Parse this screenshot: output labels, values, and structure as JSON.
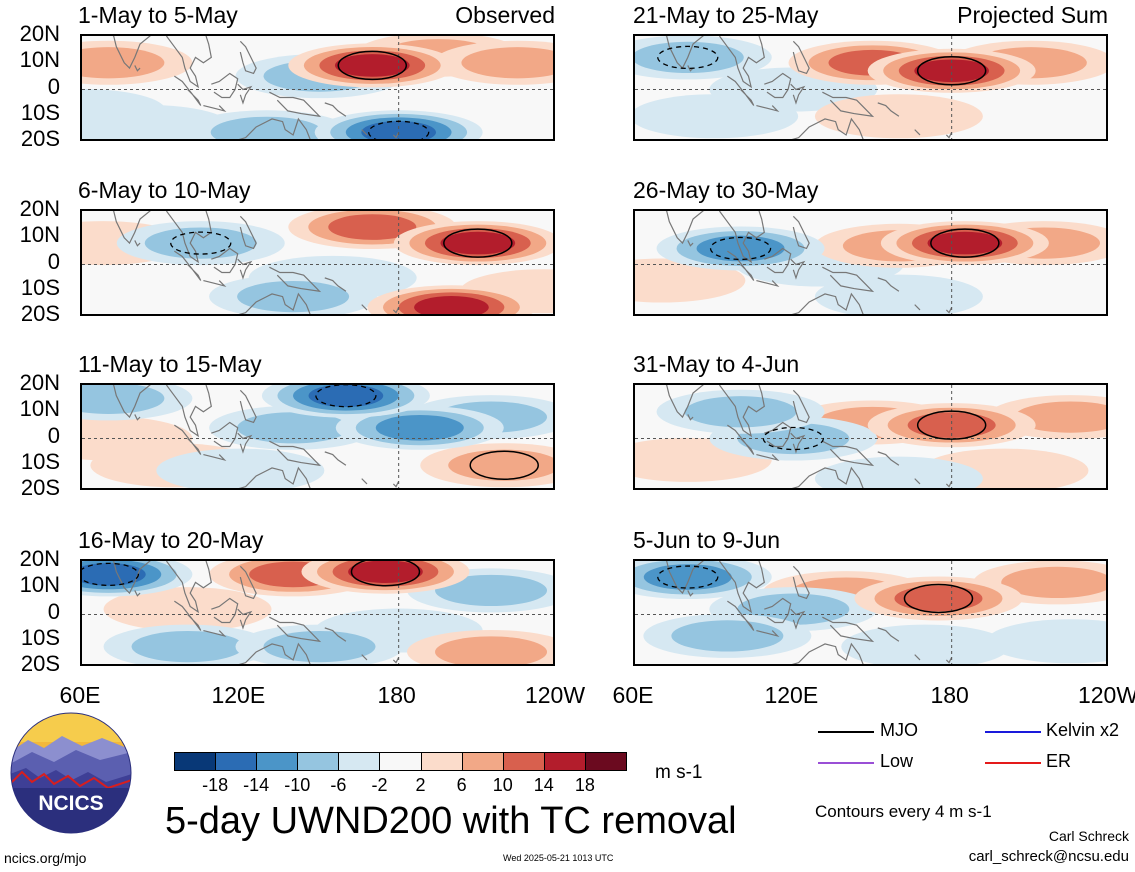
{
  "figure": {
    "main_title": "5-day UWND200 with TC removal",
    "site": "ncics.org/mjo",
    "timestamp": "Wed 2025-05-21 1013 UTC",
    "author": "Carl Schreck",
    "email": "carl_schreck@ncsu.edu",
    "logo_text": "NCICS"
  },
  "colorbar": {
    "unit": "m s-1",
    "ticks": [
      "-18",
      "-14",
      "-10",
      "-6",
      "-2",
      "2",
      "6",
      "10",
      "14",
      "18"
    ],
    "colors": [
      "#083877",
      "#2b6cb4",
      "#4b95c8",
      "#95c5e0",
      "#d6e8f2",
      "#f8f8f8",
      "#fbdccb",
      "#f2a887",
      "#d8604e",
      "#b31d2c",
      "#6b0a1f"
    ]
  },
  "legend": {
    "items": [
      {
        "label": "MJO",
        "color": "#000000"
      },
      {
        "label": "Kelvin x2",
        "color": "#1a1adb"
      },
      {
        "label": "Low",
        "color": "#9a4fd6"
      },
      {
        "label": "ER",
        "color": "#e41a1a"
      }
    ],
    "contour_note": "Contours every 4 m s-1"
  },
  "axes": {
    "y_ticks": [
      "20N",
      "10N",
      "0",
      "10S",
      "20S"
    ],
    "x_ticks": [
      "60E",
      "120E",
      "180",
      "120W"
    ]
  },
  "chart_data": {
    "type": "heatmap",
    "variable": "200-hPa zonal wind anomaly",
    "units": "m s-1",
    "x_range_lon": [
      60,
      240
    ],
    "y_range_lat": [
      -20,
      20
    ],
    "contour_interval": 4,
    "color_levels": [
      -18,
      -14,
      -10,
      -6,
      -2,
      2,
      6,
      10,
      14,
      18
    ],
    "panels": [
      {
        "title": "1-May to 5-May",
        "tag": "Observed",
        "features": [
          {
            "lon": 170,
            "lat": 9,
            "value": 14
          },
          {
            "lon": 70,
            "lat": 10,
            "value": 6
          },
          {
            "lon": 195,
            "lat": 13,
            "value": 6
          },
          {
            "lon": 225,
            "lat": 10,
            "value": 6
          },
          {
            "lon": 180,
            "lat": -16,
            "value": -14
          },
          {
            "lon": 150,
            "lat": 5,
            "value": -6
          },
          {
            "lon": 130,
            "lat": -16,
            "value": -6
          },
          {
            "lon": 85,
            "lat": -14,
            "value": -2
          },
          {
            "lon": 60,
            "lat": -8,
            "value": -2
          }
        ]
      },
      {
        "title": "6-May to 10-May",
        "tag": "",
        "features": [
          {
            "lon": 210,
            "lat": 8,
            "value": 14
          },
          {
            "lon": 170,
            "lat": 14,
            "value": 10
          },
          {
            "lon": 200,
            "lat": -16,
            "value": 14
          },
          {
            "lon": 68,
            "lat": 8,
            "value": 2
          },
          {
            "lon": 105,
            "lat": 8,
            "value": -6
          },
          {
            "lon": 140,
            "lat": -12,
            "value": -6
          },
          {
            "lon": 155,
            "lat": -5,
            "value": -2
          },
          {
            "lon": 235,
            "lat": -10,
            "value": 2
          }
        ]
      },
      {
        "title": "11-May to 15-May",
        "tag": "",
        "features": [
          {
            "lon": 140,
            "lat": 4,
            "value": -6
          },
          {
            "lon": 160,
            "lat": 16,
            "value": -14
          },
          {
            "lon": 188,
            "lat": 4,
            "value": -10
          },
          {
            "lon": 215,
            "lat": 8,
            "value": -6
          },
          {
            "lon": 220,
            "lat": -10,
            "value": 6
          },
          {
            "lon": 70,
            "lat": 0,
            "value": 2
          },
          {
            "lon": 95,
            "lat": -10,
            "value": 2
          },
          {
            "lon": 120,
            "lat": -12,
            "value": -2
          },
          {
            "lon": 70,
            "lat": 15,
            "value": -6
          }
        ]
      },
      {
        "title": "16-May to 20-May",
        "tag": "",
        "features": [
          {
            "lon": 175,
            "lat": 16,
            "value": 16
          },
          {
            "lon": 140,
            "lat": 15,
            "value": 10
          },
          {
            "lon": 215,
            "lat": 9,
            "value": -6
          },
          {
            "lon": 70,
            "lat": 15,
            "value": -14
          },
          {
            "lon": 100,
            "lat": -12,
            "value": -6
          },
          {
            "lon": 150,
            "lat": -12,
            "value": -6
          },
          {
            "lon": 180,
            "lat": -6,
            "value": -2
          },
          {
            "lon": 215,
            "lat": -14,
            "value": 6
          },
          {
            "lon": 100,
            "lat": 2,
            "value": 2
          }
        ]
      },
      {
        "title": "21-May to 25-May",
        "tag": "Projected Sum",
        "features": [
          {
            "lon": 180,
            "lat": 7,
            "value": 14
          },
          {
            "lon": 150,
            "lat": 10,
            "value": 10
          },
          {
            "lon": 210,
            "lat": 10,
            "value": 6
          },
          {
            "lon": 80,
            "lat": 12,
            "value": -6
          },
          {
            "lon": 120,
            "lat": 0,
            "value": -2
          },
          {
            "lon": 90,
            "lat": -10,
            "value": -2
          },
          {
            "lon": 160,
            "lat": -10,
            "value": 2
          }
        ]
      },
      {
        "title": "26-May to 30-May",
        "tag": "",
        "features": [
          {
            "lon": 185,
            "lat": 8,
            "value": 14
          },
          {
            "lon": 160,
            "lat": 7,
            "value": 6
          },
          {
            "lon": 215,
            "lat": 8,
            "value": 6
          },
          {
            "lon": 100,
            "lat": 6,
            "value": -10
          },
          {
            "lon": 130,
            "lat": 0,
            "value": -2
          },
          {
            "lon": 160,
            "lat": -12,
            "value": -2
          },
          {
            "lon": 70,
            "lat": -6,
            "value": 2
          }
        ]
      },
      {
        "title": "31-May to 4-Jun",
        "tag": "",
        "features": [
          {
            "lon": 180,
            "lat": 5,
            "value": 10
          },
          {
            "lon": 150,
            "lat": 6,
            "value": 6
          },
          {
            "lon": 225,
            "lat": 8,
            "value": 6
          },
          {
            "lon": 120,
            "lat": 0,
            "value": -6
          },
          {
            "lon": 100,
            "lat": 10,
            "value": -6
          },
          {
            "lon": 200,
            "lat": -12,
            "value": 2
          },
          {
            "lon": 160,
            "lat": -15,
            "value": -2
          },
          {
            "lon": 80,
            "lat": -8,
            "value": 2
          }
        ]
      },
      {
        "title": "5-Jun to 9-Jun",
        "tag": "",
        "features": [
          {
            "lon": 175,
            "lat": 6,
            "value": 10
          },
          {
            "lon": 140,
            "lat": 8,
            "value": 6
          },
          {
            "lon": 220,
            "lat": 12,
            "value": 6
          },
          {
            "lon": 80,
            "lat": 14,
            "value": -10
          },
          {
            "lon": 120,
            "lat": 2,
            "value": -6
          },
          {
            "lon": 95,
            "lat": -8,
            "value": -6
          },
          {
            "lon": 170,
            "lat": -12,
            "value": -2
          },
          {
            "lon": 225,
            "lat": -10,
            "value": -2
          }
        ]
      }
    ]
  }
}
